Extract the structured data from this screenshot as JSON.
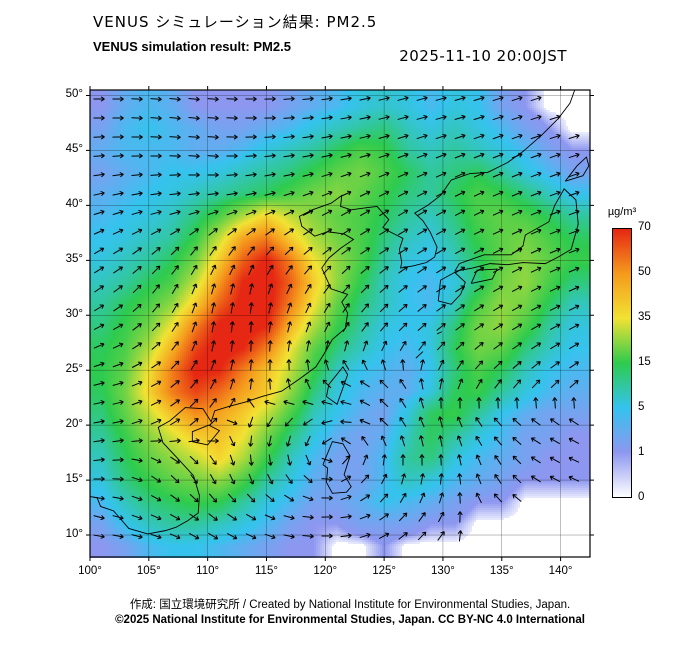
{
  "header": {
    "title_jp": "VENUS シミュレーション結果: PM2.5",
    "title_en": "VENUS simulation result: PM2.5",
    "timestamp": "2025-11-10 20:00JST"
  },
  "footer": {
    "credit": "作成: 国立環境研究所 / Created by National Institute for Environmental Studies, Japan.",
    "license": "©2025 National Institute for Environmental Studies, Japan. CC BY-NC 4.0 International"
  },
  "chart_data": {
    "type": "heatmap",
    "pollutant": "PM2.5",
    "unit": "µg/m³",
    "region": "East Asia",
    "lon_range": [
      100,
      142.5
    ],
    "lat_range": [
      8,
      50.5
    ],
    "lon_ticks": [
      100,
      105,
      110,
      115,
      120,
      125,
      130,
      135,
      140
    ],
    "lon_tick_labels": [
      "100°",
      "105°",
      "110°",
      "115°",
      "120°",
      "125°",
      "130°",
      "135°",
      "140°"
    ],
    "lat_ticks": [
      50,
      45,
      40,
      35,
      30,
      25,
      20,
      15,
      10
    ],
    "lat_tick_labels": [
      "50°",
      "45°",
      "40°",
      "35°",
      "30°",
      "25°",
      "20°",
      "15°",
      "10°"
    ],
    "colorbar": {
      "label": "µg/m³",
      "values": [
        0,
        1,
        5,
        15,
        35,
        50,
        70
      ],
      "colors": [
        "#ffffff",
        "#8d97f0",
        "#35c3ee",
        "#2ecb4e",
        "#f2e233",
        "#f59a1d",
        "#e52713"
      ]
    },
    "grid": {
      "description": "PM2.5 concentration (µg/m³) on 2° grid, rows north to south",
      "lons": [
        101,
        103,
        105,
        107,
        109,
        111,
        113,
        115,
        117,
        119,
        121,
        123,
        125,
        127,
        129,
        131,
        133,
        135,
        137,
        139,
        141
      ],
      "lats": [
        49,
        47,
        45,
        43,
        41,
        39,
        37,
        35,
        33,
        31,
        29,
        27,
        25,
        23,
        21,
        19,
        17,
        15,
        13,
        11,
        9
      ],
      "values": [
        [
          1,
          3,
          4,
          3,
          1,
          1,
          1,
          1,
          2,
          3,
          4,
          6,
          7,
          6,
          4,
          6,
          5,
          2,
          1,
          0,
          0
        ],
        [
          2,
          4,
          5,
          4,
          3,
          2,
          2,
          3,
          4,
          6,
          8,
          10,
          12,
          8,
          6,
          8,
          6,
          4,
          2,
          1,
          0
        ],
        [
          3,
          4,
          4,
          4,
          3,
          3,
          4,
          6,
          8,
          10,
          14,
          18,
          16,
          10,
          8,
          10,
          8,
          6,
          4,
          2,
          1
        ],
        [
          2,
          3,
          4,
          5,
          5,
          6,
          8,
          10,
          12,
          16,
          20,
          22,
          18,
          14,
          10,
          12,
          14,
          10,
          6,
          4,
          2
        ],
        [
          3,
          4,
          5,
          6,
          8,
          10,
          12,
          14,
          18,
          22,
          24,
          20,
          16,
          12,
          10,
          14,
          18,
          16,
          12,
          8,
          5
        ],
        [
          4,
          5,
          6,
          8,
          12,
          18,
          28,
          38,
          30,
          24,
          20,
          18,
          14,
          10,
          8,
          12,
          18,
          20,
          18,
          14,
          10
        ],
        [
          5,
          6,
          8,
          10,
          16,
          30,
          48,
          55,
          40,
          28,
          22,
          18,
          12,
          8,
          6,
          10,
          16,
          20,
          22,
          18,
          14
        ],
        [
          6,
          8,
          10,
          14,
          22,
          40,
          60,
          72,
          55,
          35,
          25,
          18,
          10,
          6,
          5,
          8,
          14,
          20,
          24,
          20,
          16
        ],
        [
          8,
          10,
          14,
          18,
          30,
          50,
          70,
          75,
          60,
          40,
          25,
          15,
          8,
          5,
          4,
          6,
          12,
          22,
          25,
          18,
          12
        ],
        [
          10,
          14,
          18,
          25,
          40,
          60,
          73,
          75,
          55,
          35,
          20,
          12,
          8,
          5,
          4,
          8,
          18,
          25,
          22,
          14,
          8
        ],
        [
          12,
          16,
          22,
          35,
          55,
          72,
          75,
          70,
          45,
          28,
          16,
          10,
          6,
          5,
          6,
          12,
          22,
          25,
          18,
          10,
          6
        ],
        [
          14,
          18,
          28,
          45,
          65,
          75,
          70,
          55,
          35,
          20,
          12,
          8,
          5,
          4,
          6,
          14,
          22,
          20,
          12,
          8,
          5
        ],
        [
          15,
          20,
          35,
          55,
          72,
          70,
          55,
          42,
          30,
          16,
          8,
          5,
          4,
          3,
          5,
          12,
          18,
          14,
          8,
          5,
          4
        ],
        [
          14,
          22,
          38,
          55,
          65,
          58,
          48,
          40,
          25,
          12,
          6,
          4,
          3,
          3,
          6,
          14,
          16,
          10,
          6,
          4,
          3
        ],
        [
          12,
          20,
          30,
          42,
          52,
          48,
          40,
          30,
          18,
          8,
          5,
          3,
          2,
          6,
          14,
          16,
          10,
          5,
          3,
          2,
          2
        ],
        [
          10,
          16,
          24,
          32,
          40,
          42,
          35,
          22,
          12,
          6,
          3,
          2,
          3,
          8,
          14,
          10,
          6,
          4,
          2,
          2,
          1
        ],
        [
          8,
          14,
          20,
          25,
          30,
          38,
          28,
          16,
          8,
          4,
          2,
          2,
          4,
          10,
          12,
          6,
          4,
          3,
          2,
          1,
          1
        ],
        [
          6,
          12,
          16,
          20,
          22,
          25,
          18,
          10,
          6,
          3,
          2,
          2,
          4,
          8,
          6,
          4,
          3,
          2,
          1,
          1,
          1
        ],
        [
          4,
          8,
          12,
          14,
          16,
          15,
          10,
          6,
          4,
          2,
          2,
          3,
          5,
          4,
          3,
          2,
          1,
          1,
          0,
          0,
          0
        ],
        [
          2,
          5,
          8,
          10,
          10,
          8,
          6,
          4,
          2,
          1,
          1,
          2,
          2,
          2,
          1,
          1,
          0,
          0,
          0,
          0,
          0
        ],
        [
          1,
          2,
          4,
          5,
          5,
          4,
          3,
          2,
          1,
          1,
          0,
          0,
          1,
          0,
          0,
          0,
          0,
          0,
          0,
          0,
          0
        ]
      ]
    },
    "wind": {
      "description": "wind direction arrows (degrees, 0=east, 90=north), cyclonic vortex near 121E 17N",
      "lons": [
        102,
        106,
        110,
        114,
        118,
        122,
        126,
        130,
        134,
        138,
        142
      ],
      "lats": [
        48,
        44,
        40,
        36,
        32,
        28,
        24,
        20,
        16,
        12,
        8
      ],
      "angles_deg": [
        [
          0,
          -5,
          -5,
          0,
          5,
          10,
          15,
          15,
          18,
          18,
          15
        ],
        [
          5,
          0,
          -5,
          5,
          10,
          15,
          20,
          22,
          22,
          20,
          18
        ],
        [
          15,
          10,
          10,
          15,
          22,
          28,
          30,
          28,
          25,
          22,
          20
        ],
        [
          30,
          40,
          55,
          50,
          40,
          35,
          32,
          30,
          26,
          24,
          20
        ],
        [
          35,
          55,
          75,
          80,
          62,
          50,
          40,
          34,
          30,
          26,
          24
        ],
        [
          25,
          45,
          80,
          90,
          74,
          60,
          48,
          40,
          34,
          30,
          28
        ],
        [
          15,
          30,
          60,
          85,
          105,
          155,
          130,
          75,
          50,
          42,
          36
        ],
        [
          10,
          25,
          45,
          250,
          225,
          175,
          125,
          105,
          135,
          148,
          152
        ],
        [
          5,
          320,
          295,
          280,
          300,
          40,
          80,
          90,
          115,
          148,
          158
        ],
        [
          345,
          335,
          320,
          330,
          350,
          10,
          45,
          65,
          135,
          150,
          155
        ],
        [
          355,
          345,
          335,
          340,
          355,
          5,
          25,
          45,
          150,
          155,
          158
        ]
      ]
    },
    "coastlines": [
      [
        [
          100,
          13.5
        ],
        [
          100.6,
          13.4
        ],
        [
          100.9,
          12.6
        ],
        [
          102,
          12.2
        ],
        [
          103.3,
          10.6
        ],
        [
          104.9,
          10.1
        ],
        [
          106.4,
          10.4
        ],
        [
          107.3,
          10.7
        ],
        [
          108.3,
          11.3
        ],
        [
          109.2,
          12
        ],
        [
          109.3,
          13.6
        ],
        [
          108.8,
          15.4
        ],
        [
          107.6,
          16.8
        ],
        [
          106.2,
          18.4
        ],
        [
          105.8,
          19.8
        ],
        [
          106.8,
          20.4
        ],
        [
          108.1,
          21.6
        ],
        [
          109.6,
          21.5
        ],
        [
          110.3,
          20.3
        ],
        [
          110.6,
          21.3
        ],
        [
          111.8,
          21.7
        ],
        [
          113.2,
          22.1
        ],
        [
          114.6,
          22.6
        ],
        [
          116.3,
          23.1
        ],
        [
          117.8,
          24.2
        ],
        [
          119.2,
          25.3
        ],
        [
          119.9,
          26.5
        ],
        [
          120.6,
          27.8
        ],
        [
          121.7,
          28.8
        ],
        [
          121.9,
          30.2
        ],
        [
          121.4,
          31.2
        ],
        [
          121.9,
          31.9
        ],
        [
          120.5,
          32.4
        ],
        [
          119.7,
          34.3
        ],
        [
          120.3,
          35.2
        ],
        [
          121.3,
          36.1
        ],
        [
          122.4,
          36.9
        ],
        [
          121.6,
          37.4
        ],
        [
          120.2,
          37.6
        ],
        [
          119.1,
          37.2
        ],
        [
          118,
          38.1
        ],
        [
          117.8,
          39
        ],
        [
          118.9,
          39.6
        ],
        [
          120.5,
          40.2
        ],
        [
          121.4,
          40.9
        ],
        [
          121.3,
          39.9
        ],
        [
          122.2,
          39.6
        ],
        [
          123.6,
          39.8
        ],
        [
          124.4,
          39.9
        ]
      ],
      [
        [
          124.4,
          39.9
        ],
        [
          125.4,
          38.7
        ],
        [
          124.9,
          38
        ],
        [
          125.3,
          37.7
        ],
        [
          126.6,
          37
        ],
        [
          126.3,
          36
        ],
        [
          126.5,
          34.8
        ],
        [
          126.4,
          34.3
        ],
        [
          127.5,
          34.5
        ],
        [
          128.6,
          34.8
        ],
        [
          129.3,
          35.3
        ],
        [
          129.5,
          36.2
        ],
        [
          128.9,
          37.6
        ],
        [
          128.3,
          38.6
        ],
        [
          127.6,
          39.3
        ],
        [
          128.7,
          40
        ],
        [
          129.8,
          40.9
        ],
        [
          130.7,
          42.3
        ]
      ],
      [
        [
          130.7,
          42.3
        ],
        [
          132.3,
          42.9
        ],
        [
          133.8,
          43
        ],
        [
          135.5,
          43.9
        ],
        [
          136.8,
          44.9
        ],
        [
          138.4,
          46.4
        ],
        [
          139.8,
          47.9
        ],
        [
          140.8,
          49.3
        ],
        [
          141.2,
          50.5
        ]
      ],
      [
        [
          108.7,
          18.5
        ],
        [
          110,
          18.2
        ],
        [
          111,
          19.5
        ],
        [
          110.1,
          20
        ],
        [
          108.7,
          19.4
        ],
        [
          108.7,
          18.5
        ]
      ],
      [
        [
          120.1,
          22.6
        ],
        [
          121,
          21.9
        ],
        [
          121.9,
          24.6
        ],
        [
          121.5,
          25.3
        ],
        [
          120.3,
          23.7
        ],
        [
          120.1,
          22.6
        ]
      ],
      [
        [
          129.6,
          31.3
        ],
        [
          130.7,
          31
        ],
        [
          131.5,
          31.9
        ],
        [
          131.9,
          33
        ],
        [
          131,
          33.9
        ],
        [
          129.8,
          33.2
        ],
        [
          129.6,
          31.3
        ]
      ],
      [
        [
          132.4,
          32.9
        ],
        [
          134.2,
          33.3
        ],
        [
          134.6,
          34.2
        ],
        [
          132.9,
          34.1
        ],
        [
          132.4,
          32.9
        ]
      ],
      [
        [
          131,
          34
        ],
        [
          132.5,
          34.3
        ],
        [
          134,
          34.7
        ],
        [
          135.5,
          34.6
        ],
        [
          136.8,
          34.8
        ],
        [
          138.7,
          34.7
        ],
        [
          139.8,
          35.3
        ],
        [
          140.9,
          36
        ],
        [
          141.5,
          38.3
        ],
        [
          141.3,
          40.5
        ],
        [
          140.3,
          41.5
        ],
        [
          139.5,
          40
        ],
        [
          139,
          38.5
        ],
        [
          137,
          37.3
        ],
        [
          136.8,
          36.3
        ],
        [
          135.8,
          35.5
        ],
        [
          133.5,
          35.5
        ],
        [
          131.4,
          34.7
        ],
        [
          131,
          34
        ]
      ],
      [
        [
          140.4,
          42.2
        ],
        [
          141.9,
          42.7
        ],
        [
          142.4,
          43.6
        ],
        [
          142.2,
          44.4
        ],
        [
          141.4,
          43.6
        ],
        [
          140.4,
          42.2
        ]
      ],
      [
        [
          119.8,
          16.4
        ],
        [
          120.2,
          16.1
        ],
        [
          120.1,
          14.8
        ],
        [
          120.6,
          13.8
        ],
        [
          121.8,
          13.9
        ],
        [
          122.2,
          14.4
        ],
        [
          121.6,
          15.5
        ],
        [
          122.1,
          17.2
        ],
        [
          121.5,
          18.3
        ],
        [
          120.6,
          18.5
        ],
        [
          119.8,
          16.4
        ]
      ],
      [
        [
          127.7,
          26.1
        ],
        [
          128.3,
          26.7
        ]
      ],
      [
        [
          129.5,
          28.3
        ],
        [
          129.9,
          28.5
        ]
      ]
    ]
  }
}
